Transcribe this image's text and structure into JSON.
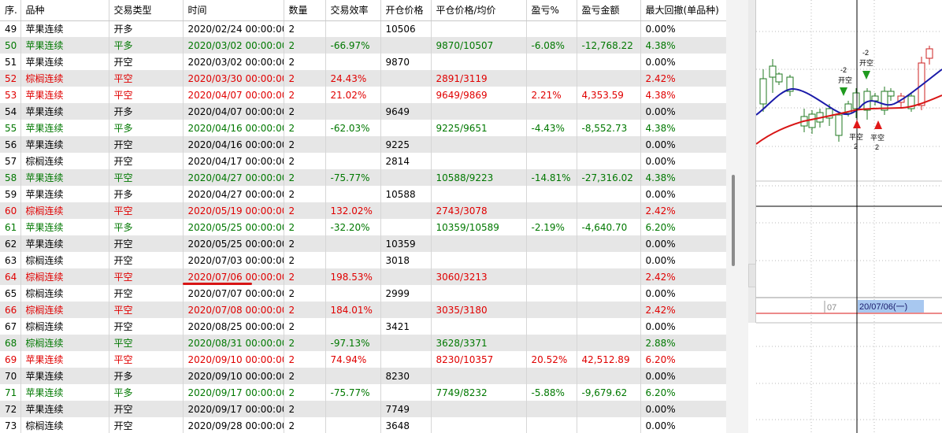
{
  "table": {
    "columns": [
      "序.",
      "品种",
      "交易类型",
      "时间",
      "数量",
      "交易效率",
      "开仓价格",
      "平仓价格/均价",
      "盈亏%",
      "盈亏金额",
      "最大回撤(单品种)"
    ],
    "rows": [
      {
        "color": "black",
        "cells": [
          "49",
          "苹果连续",
          "开多",
          "2020/02/24 00:00:00",
          "2",
          "",
          "10506",
          "",
          "",
          "",
          "0.00%"
        ]
      },
      {
        "color": "green",
        "cells": [
          "50",
          "苹果连续",
          "平多",
          "2020/03/02 00:00:00",
          "2",
          "-66.97%",
          "",
          "9870/10507",
          "-6.08%",
          "-12,768.22",
          "4.38%"
        ]
      },
      {
        "color": "black",
        "cells": [
          "51",
          "苹果连续",
          "开空",
          "2020/03/02 00:00:00",
          "2",
          "",
          "9870",
          "",
          "",
          "",
          "0.00%"
        ]
      },
      {
        "color": "red",
        "cells": [
          "52",
          "棕榈连续",
          "平空",
          "2020/03/30 00:00:00",
          "2",
          "24.43%",
          "",
          "2891/3119",
          "",
          "",
          "2.42%"
        ]
      },
      {
        "color": "red",
        "cells": [
          "53",
          "苹果连续",
          "平空",
          "2020/04/07 00:00:00",
          "2",
          "21.02%",
          "",
          "9649/9869",
          "2.21%",
          "4,353.59",
          "4.38%"
        ]
      },
      {
        "color": "black",
        "cells": [
          "54",
          "苹果连续",
          "开多",
          "2020/04/07 00:00:00",
          "2",
          "",
          "9649",
          "",
          "",
          "",
          "0.00%"
        ]
      },
      {
        "color": "green",
        "cells": [
          "55",
          "苹果连续",
          "平多",
          "2020/04/16 00:00:00",
          "2",
          "-62.03%",
          "",
          "9225/9651",
          "-4.43%",
          "-8,552.73",
          "4.38%"
        ]
      },
      {
        "color": "black",
        "cells": [
          "56",
          "苹果连续",
          "开空",
          "2020/04/16 00:00:00",
          "2",
          "",
          "9225",
          "",
          "",
          "",
          "0.00%"
        ]
      },
      {
        "color": "black",
        "cells": [
          "57",
          "棕榈连续",
          "开空",
          "2020/04/17 00:00:00",
          "2",
          "",
          "2814",
          "",
          "",
          "",
          "0.00%"
        ]
      },
      {
        "color": "green",
        "cells": [
          "58",
          "苹果连续",
          "平空",
          "2020/04/27 00:00:00",
          "2",
          "-75.77%",
          "",
          "10588/9223",
          "-14.81%",
          "-27,316.02",
          "4.38%"
        ]
      },
      {
        "color": "black",
        "cells": [
          "59",
          "苹果连续",
          "开多",
          "2020/04/27 00:00:00",
          "2",
          "",
          "10588",
          "",
          "",
          "",
          "0.00%"
        ]
      },
      {
        "color": "red",
        "cells": [
          "60",
          "棕榈连续",
          "平空",
          "2020/05/19 00:00:00",
          "2",
          "132.02%",
          "",
          "2743/3078",
          "",
          "",
          "2.42%"
        ]
      },
      {
        "color": "green",
        "cells": [
          "61",
          "苹果连续",
          "平多",
          "2020/05/25 00:00:00",
          "2",
          "-32.20%",
          "",
          "10359/10589",
          "-2.19%",
          "-4,640.70",
          "6.20%"
        ]
      },
      {
        "color": "black",
        "cells": [
          "62",
          "苹果连续",
          "开空",
          "2020/05/25 00:00:00",
          "2",
          "",
          "10359",
          "",
          "",
          "",
          "0.00%"
        ]
      },
      {
        "color": "black",
        "cells": [
          "63",
          "棕榈连续",
          "开空",
          "2020/07/03 00:00:00",
          "2",
          "",
          "3018",
          "",
          "",
          "",
          "0.00%"
        ]
      },
      {
        "color": "red",
        "cells": [
          "64",
          "棕榈连续",
          "平空",
          "2020/07/06 00:00:00",
          "2",
          "198.53%",
          "",
          "3060/3213",
          "",
          "",
          "2.42%"
        ]
      },
      {
        "color": "black",
        "cells": [
          "65",
          "棕榈连续",
          "开空",
          "2020/07/07 00:00:00",
          "2",
          "",
          "2999",
          "",
          "",
          "",
          "0.00%"
        ]
      },
      {
        "color": "red",
        "cells": [
          "66",
          "棕榈连续",
          "平空",
          "2020/07/08 00:00:00",
          "2",
          "184.01%",
          "",
          "3035/3180",
          "",
          "",
          "2.42%"
        ]
      },
      {
        "color": "black",
        "cells": [
          "67",
          "棕榈连续",
          "开空",
          "2020/08/25 00:00:00",
          "2",
          "",
          "3421",
          "",
          "",
          "",
          "0.00%"
        ]
      },
      {
        "color": "green",
        "cells": [
          "68",
          "棕榈连续",
          "平空",
          "2020/08/31 00:00:00",
          "2",
          "-97.13%",
          "",
          "3628/3371",
          "",
          "",
          "2.88%"
        ]
      },
      {
        "color": "red",
        "cells": [
          "69",
          "苹果连续",
          "平空",
          "2020/09/10 00:00:00",
          "2",
          "74.94%",
          "",
          "8230/10357",
          "20.52%",
          "42,512.89",
          "6.20%"
        ]
      },
      {
        "color": "black",
        "cells": [
          "70",
          "苹果连续",
          "开多",
          "2020/09/10 00:00:00",
          "2",
          "",
          "8230",
          "",
          "",
          "",
          "0.00%"
        ]
      },
      {
        "color": "green",
        "cells": [
          "71",
          "苹果连续",
          "平多",
          "2020/09/17 00:00:00",
          "2",
          "-75.77%",
          "",
          "7749/8232",
          "-5.88%",
          "-9,679.62",
          "6.20%"
        ]
      },
      {
        "color": "black",
        "cells": [
          "72",
          "苹果连续",
          "开空",
          "2020/09/17 00:00:00",
          "2",
          "",
          "7749",
          "",
          "",
          "",
          "0.00%"
        ]
      },
      {
        "color": "black",
        "cells": [
          "73",
          "棕榈连续",
          "开空",
          "2020/09/28 00:00:00",
          "2",
          "",
          "3648",
          "",
          "",
          "",
          "0.00%"
        ]
      }
    ],
    "row_colors": {
      "black": "#000000",
      "green": "#007800",
      "red": "#e00000"
    }
  },
  "chart": {
    "marker_labels": {
      "sell_1_line1": "-2",
      "sell_1_line2": "开空",
      "sell_2_line1": "-2",
      "sell_2_line2": "开空",
      "buy_1_line1": "平空",
      "buy_1_line2": "2",
      "buy_2_line1": "平空",
      "buy_2_line2": "2"
    },
    "axis_tick_label": "07",
    "crosshair_date": "20/07/06(一)",
    "colors": {
      "up_candle": "#cc2020",
      "down_candle": "#207a20",
      "ma_fast": "#1a1aa8",
      "ma_slow": "#d81515",
      "crosshair": "#000000"
    }
  }
}
